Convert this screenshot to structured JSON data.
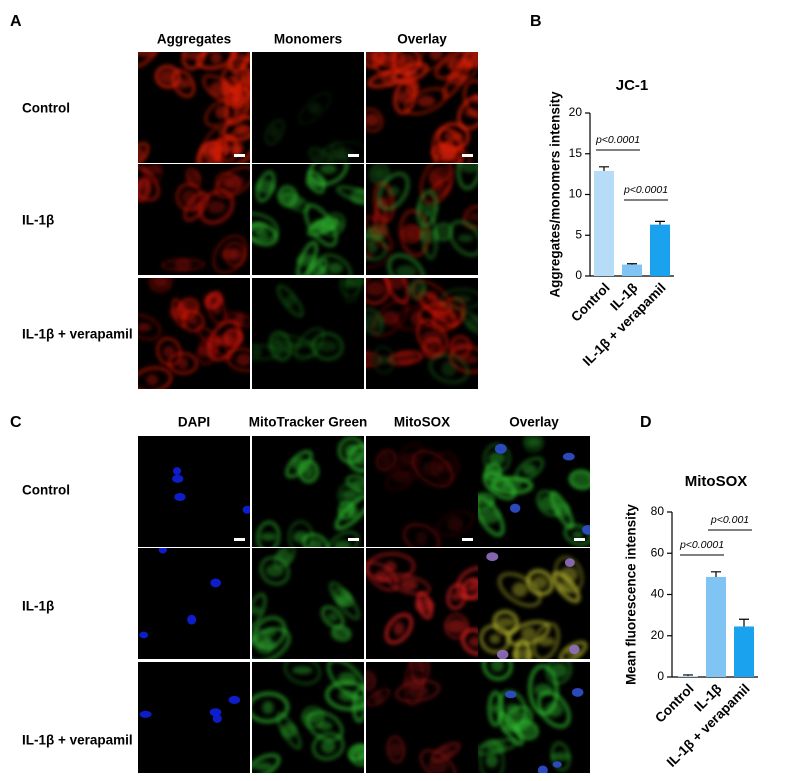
{
  "panels": {
    "a": {
      "label": "A",
      "columns": [
        "Aggregates",
        "Monomers",
        "Overlay"
      ],
      "rows": [
        "Control",
        "IL-1β",
        "IL-1β + verapamil"
      ]
    },
    "b": {
      "label": "B"
    },
    "c": {
      "label": "C",
      "columns": [
        "DAPI",
        "MitoTracker Green",
        "MitoSOX",
        "Overlay"
      ],
      "rows": [
        "Control",
        "IL-1β",
        "IL-1β + verapamil"
      ]
    },
    "d": {
      "label": "D"
    }
  },
  "chart_data": [
    {
      "type": "bar",
      "title": "JC-1",
      "y_label": "Aggregates/monomers intensity",
      "categories": [
        "Control",
        "IL-1β",
        "IL-1β + verapamil"
      ],
      "values": [
        12.9,
        1.4,
        6.3
      ],
      "errors": [
        0.5,
        0.1,
        0.4
      ],
      "colors": [
        "#b7dcf8",
        "#80c4f4",
        "#1aa2ef"
      ],
      "ylim": [
        0,
        20
      ],
      "yticks": [
        0,
        5,
        10,
        15,
        20
      ],
      "annotations": [
        "p<0.0001",
        "p<0.0001"
      ]
    },
    {
      "type": "bar",
      "title": "MitoSOX",
      "y_label": "Mean fluorescence intensity",
      "categories": [
        "Control",
        "IL-1β",
        "IL-1β + verapamil"
      ],
      "values": [
        0.5,
        48.5,
        24.5
      ],
      "errors": [
        0.5,
        2.5,
        3.5
      ],
      "colors": [
        "#b7dcf8",
        "#80c4f4",
        "#1aa2ef"
      ],
      "ylim": [
        0,
        80
      ],
      "yticks": [
        0,
        20,
        40,
        60,
        80
      ],
      "annotations": [
        "p<0.0001",
        "p<0.001"
      ]
    }
  ]
}
